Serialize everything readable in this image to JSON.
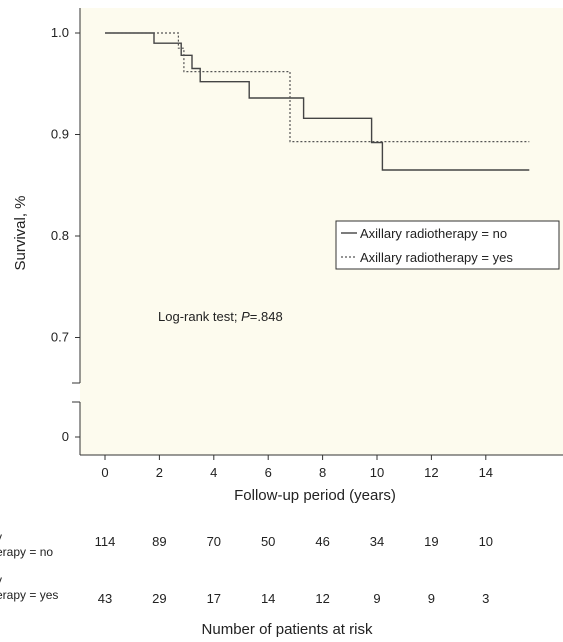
{
  "chart_data": {
    "type": "line",
    "title": "",
    "xlabel": "Follow-up period (years)",
    "ylabel": "Survival, %",
    "x_ticks": [
      0,
      2,
      4,
      6,
      8,
      10,
      12,
      14
    ],
    "y_ticks": [
      0,
      0.7,
      0.8,
      0.9,
      1.0
    ],
    "y_tick_labels": [
      "0",
      "0.7",
      "0.8",
      "0.9",
      "1.0"
    ],
    "xlim": [
      -1,
      15.6
    ],
    "ylim": [
      0.66,
      1.02
    ],
    "axis_break": true,
    "background_color": "#fdfbee",
    "series": [
      {
        "name": "Axillary radiotherapy = no",
        "style": "solid",
        "color": "#444444",
        "points": [
          [
            0,
            1.0
          ],
          [
            1.8,
            1.0
          ],
          [
            1.8,
            0.99
          ],
          [
            2.8,
            0.99
          ],
          [
            2.8,
            0.978
          ],
          [
            3.2,
            0.978
          ],
          [
            3.2,
            0.965
          ],
          [
            3.5,
            0.965
          ],
          [
            3.5,
            0.952
          ],
          [
            5.3,
            0.952
          ],
          [
            5.3,
            0.936
          ],
          [
            7.3,
            0.936
          ],
          [
            7.3,
            0.916
          ],
          [
            9.8,
            0.916
          ],
          [
            9.8,
            0.892
          ],
          [
            10.2,
            0.892
          ],
          [
            10.2,
            0.865
          ],
          [
            15.6,
            0.865
          ]
        ]
      },
      {
        "name": "Axillary radiotherapy = yes",
        "style": "dotted",
        "color": "#555555",
        "points": [
          [
            0,
            1.0
          ],
          [
            2.7,
            1.0
          ],
          [
            2.7,
            0.985
          ],
          [
            2.9,
            0.985
          ],
          [
            2.9,
            0.962
          ],
          [
            6.8,
            0.962
          ],
          [
            6.8,
            0.893
          ],
          [
            15.6,
            0.893
          ]
        ]
      }
    ],
    "legend": {
      "placement": "right",
      "entries": [
        "Axillary radiotherapy = no",
        "Axillary radiotherapy = yes"
      ]
    },
    "annotation": {
      "prefix": "Log-rank test; ",
      "p_symbol": "P",
      "value": "=.848"
    },
    "risk_table": {
      "title": "Number of patients at risk",
      "times": [
        0,
        2,
        4,
        6,
        8,
        10,
        12,
        14
      ],
      "rows": [
        {
          "line1": "y",
          "line2": "erapy = no",
          "values": [
            "114",
            "89",
            "70",
            "50",
            "46",
            "34",
            "19",
            "10"
          ]
        },
        {
          "line1": "y",
          "line2": "erapy = yes",
          "values": [
            "43",
            "29",
            "17",
            "14",
            "12",
            "9",
            "9",
            "3"
          ]
        }
      ]
    }
  }
}
